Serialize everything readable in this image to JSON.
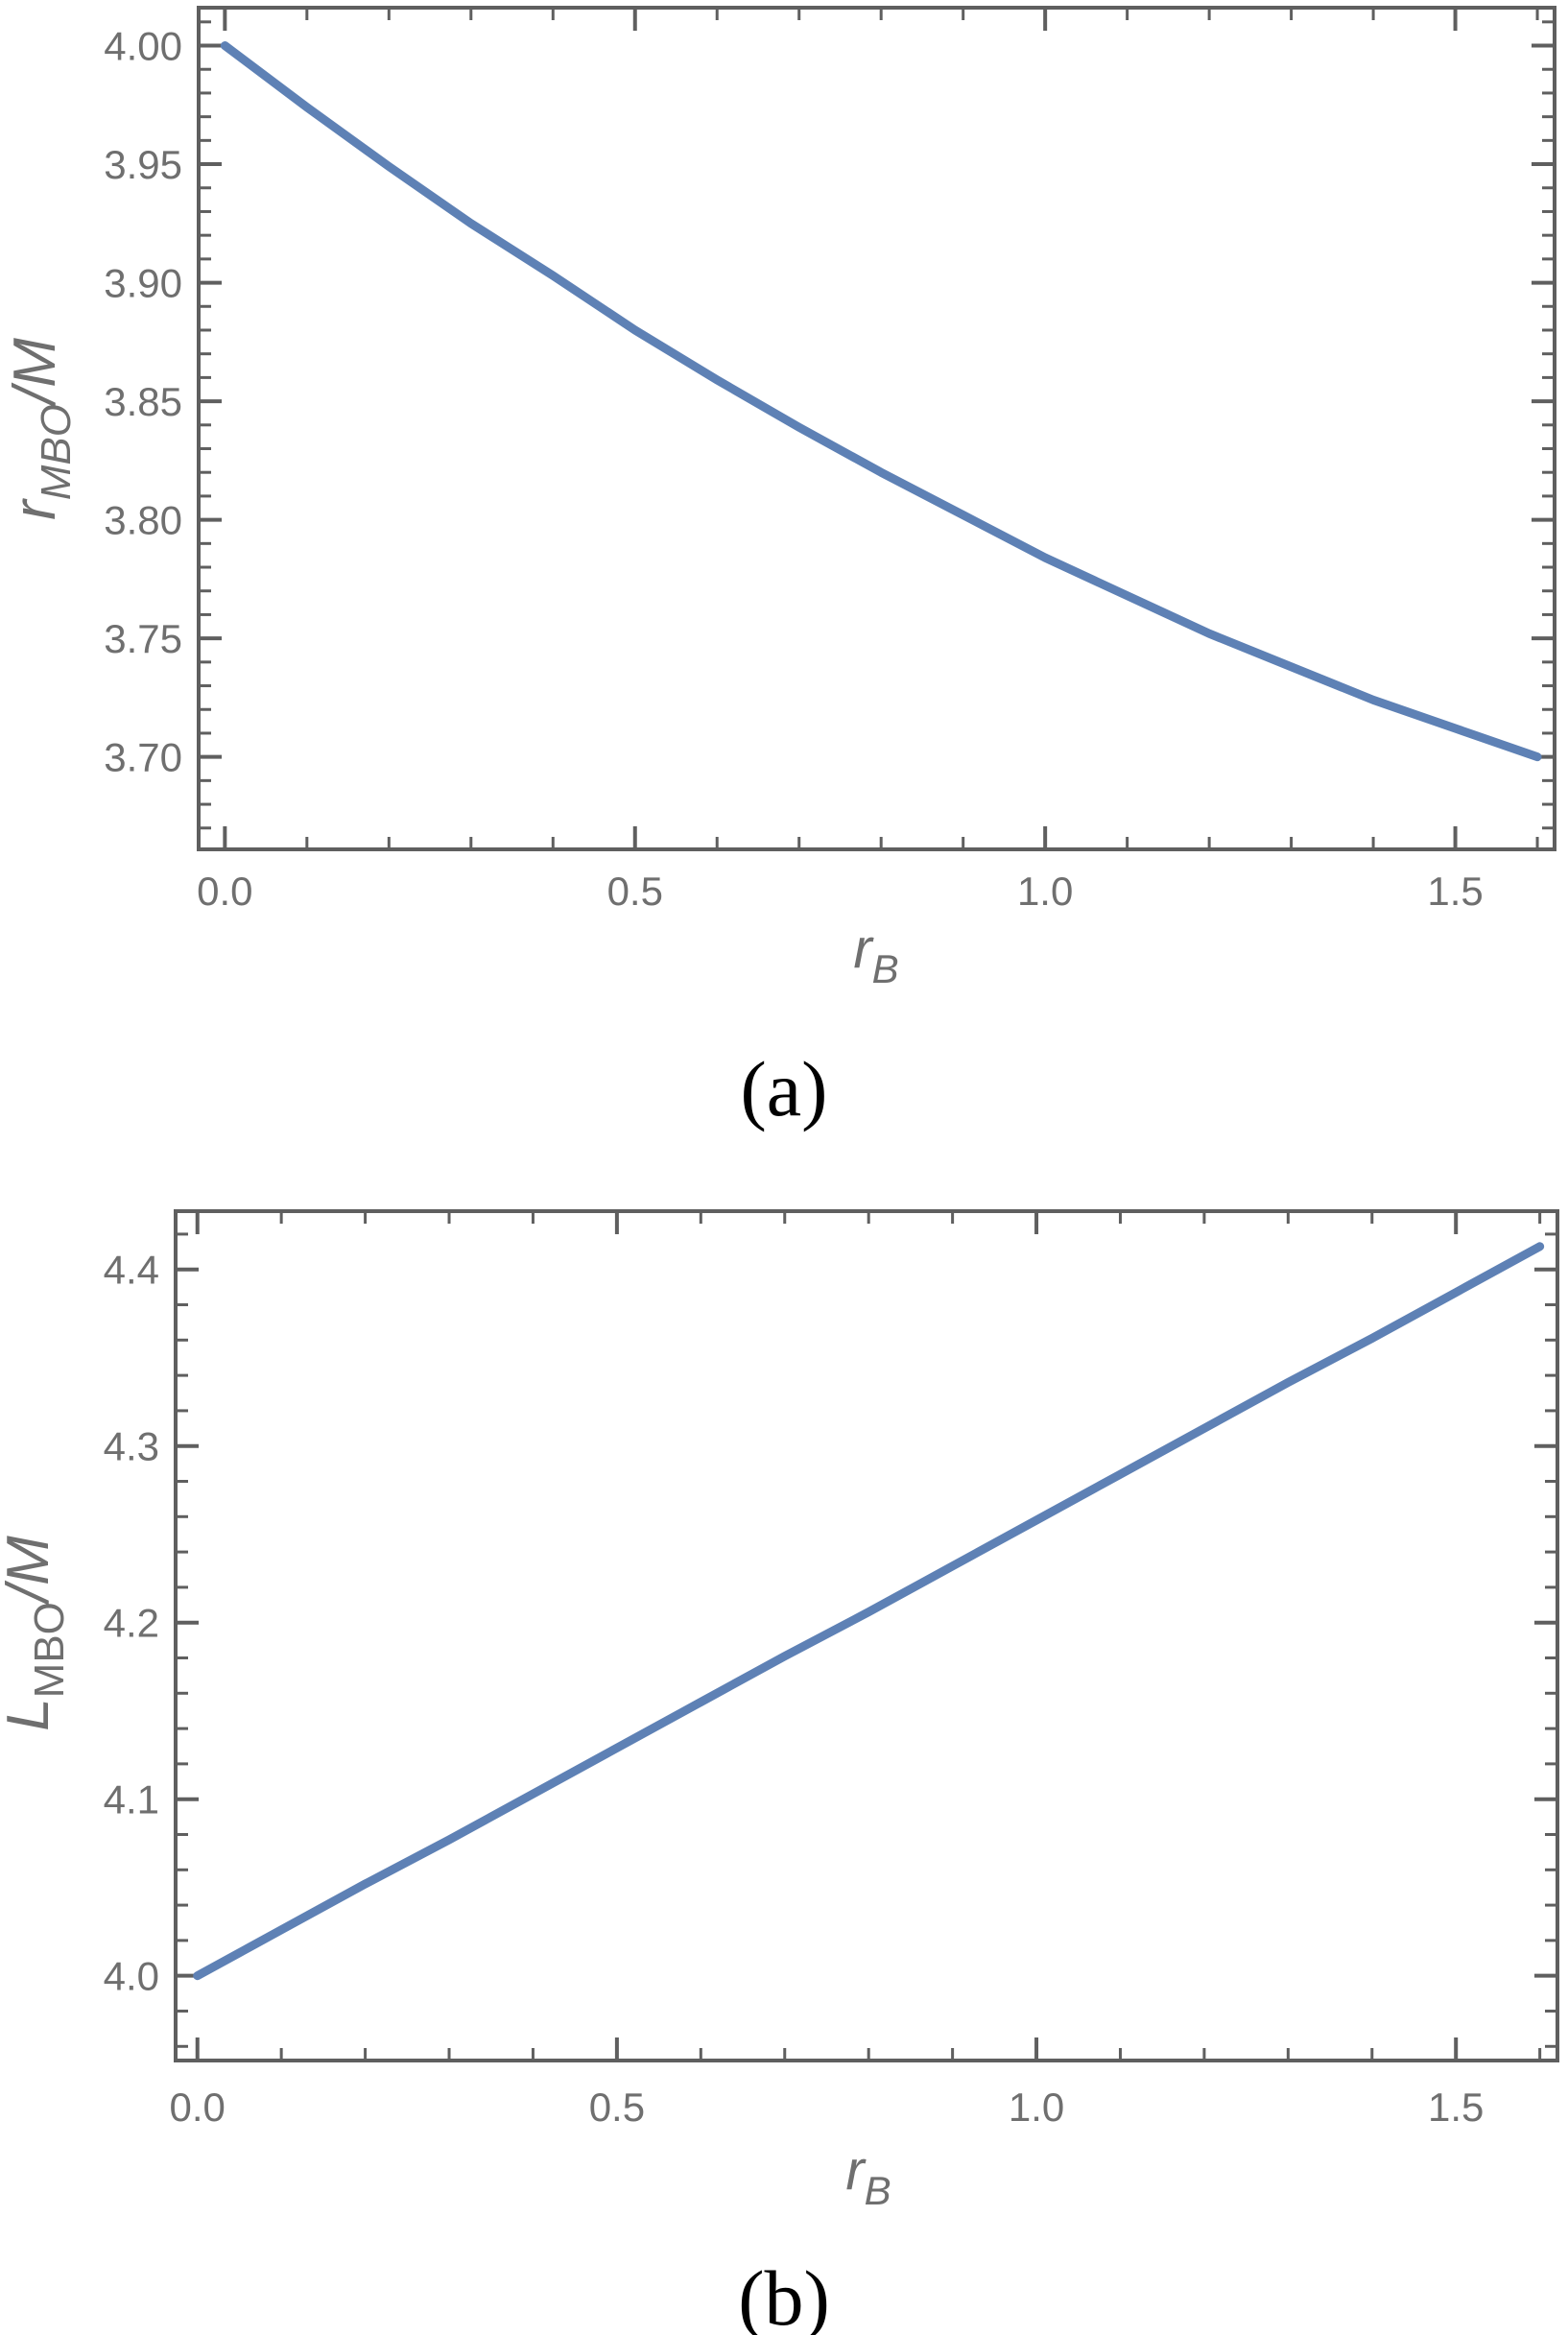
{
  "figure": {
    "caption_a": "(a)",
    "caption_b": "(b)",
    "colors": {
      "line": "#5E81B5",
      "frame": "#5f5f5f",
      "tick_label": "#6f6f6f",
      "caption": "#000000"
    }
  },
  "chart_data": [
    {
      "id": "a",
      "type": "line",
      "title": "",
      "xlabel": "r_B",
      "ylabel": "r_MBO/M",
      "xlabel_parts": [
        {
          "text": "r",
          "italic": true,
          "sub": false
        },
        {
          "text": "B",
          "italic": true,
          "sub": true
        }
      ],
      "ylabel_parts": [
        {
          "text": "r",
          "italic": true,
          "sub": false
        },
        {
          "text": "MBO",
          "italic": true,
          "sub": true
        },
        {
          "text": "/M",
          "italic": true,
          "sub": false
        }
      ],
      "xlim": [
        -0.032,
        1.621
      ],
      "ylim": [
        3.661,
        4.016
      ],
      "grid": false,
      "frame": true,
      "xticks": {
        "major": [
          0.0,
          0.5,
          1.0,
          1.5
        ],
        "labels": [
          "0.0",
          "0.5",
          "1.0",
          "1.5"
        ],
        "minor_step": 0.1
      },
      "yticks": {
        "major": [
          3.7,
          3.75,
          3.8,
          3.85,
          3.9,
          3.95,
          4.0
        ],
        "labels": [
          "3.70",
          "3.75",
          "3.80",
          "3.85",
          "3.90",
          "3.95",
          "4.00"
        ],
        "minor_step": 0.01
      },
      "series": [
        {
          "name": "r_MBO/M",
          "x": [
            0.0,
            0.1,
            0.2,
            0.3,
            0.4,
            0.5,
            0.6,
            0.7,
            0.8,
            0.9,
            1.0,
            1.1,
            1.2,
            1.3,
            1.4,
            1.5,
            1.6
          ],
          "y": [
            4.0,
            3.974,
            3.949,
            3.925,
            3.903,
            3.88,
            3.859,
            3.839,
            3.82,
            3.802,
            3.784,
            3.768,
            3.752,
            3.738,
            3.724,
            3.712,
            3.7
          ]
        }
      ]
    },
    {
      "id": "b",
      "type": "line",
      "title": "",
      "xlabel": "r_B",
      "ylabel": "L_MBO/M",
      "xlabel_parts": [
        {
          "text": "r",
          "italic": true,
          "sub": false
        },
        {
          "text": "B",
          "italic": true,
          "sub": true
        }
      ],
      "ylabel_parts": [
        {
          "text": "L",
          "italic": true,
          "sub": false
        },
        {
          "text": "MBO",
          "italic": false,
          "sub": true
        },
        {
          "text": "/M",
          "italic": true,
          "sub": false
        }
      ],
      "xlim": [
        -0.026,
        1.621
      ],
      "ylim": [
        3.952,
        4.433
      ],
      "grid": false,
      "frame": true,
      "xticks": {
        "major": [
          0.0,
          0.5,
          1.0,
          1.5
        ],
        "labels": [
          "0.0",
          "0.5",
          "1.0",
          "1.5"
        ],
        "minor_step": 0.1
      },
      "yticks": {
        "major": [
          4.0,
          4.1,
          4.2,
          4.3,
          4.4
        ],
        "labels": [
          "4.0",
          "4.1",
          "4.2",
          "4.3",
          "4.4"
        ],
        "minor_step": 0.02
      },
      "series": [
        {
          "name": "L_MBO/M",
          "x": [
            0.0,
            0.1,
            0.2,
            0.3,
            0.4,
            0.5,
            0.6,
            0.7,
            0.8,
            0.9,
            1.0,
            1.1,
            1.2,
            1.3,
            1.4,
            1.5,
            1.6
          ],
          "y": [
            4.0,
            4.026,
            4.052,
            4.077,
            4.103,
            4.129,
            4.155,
            4.181,
            4.206,
            4.232,
            4.258,
            4.284,
            4.31,
            4.336,
            4.361,
            4.387,
            4.413
          ]
        }
      ]
    }
  ]
}
